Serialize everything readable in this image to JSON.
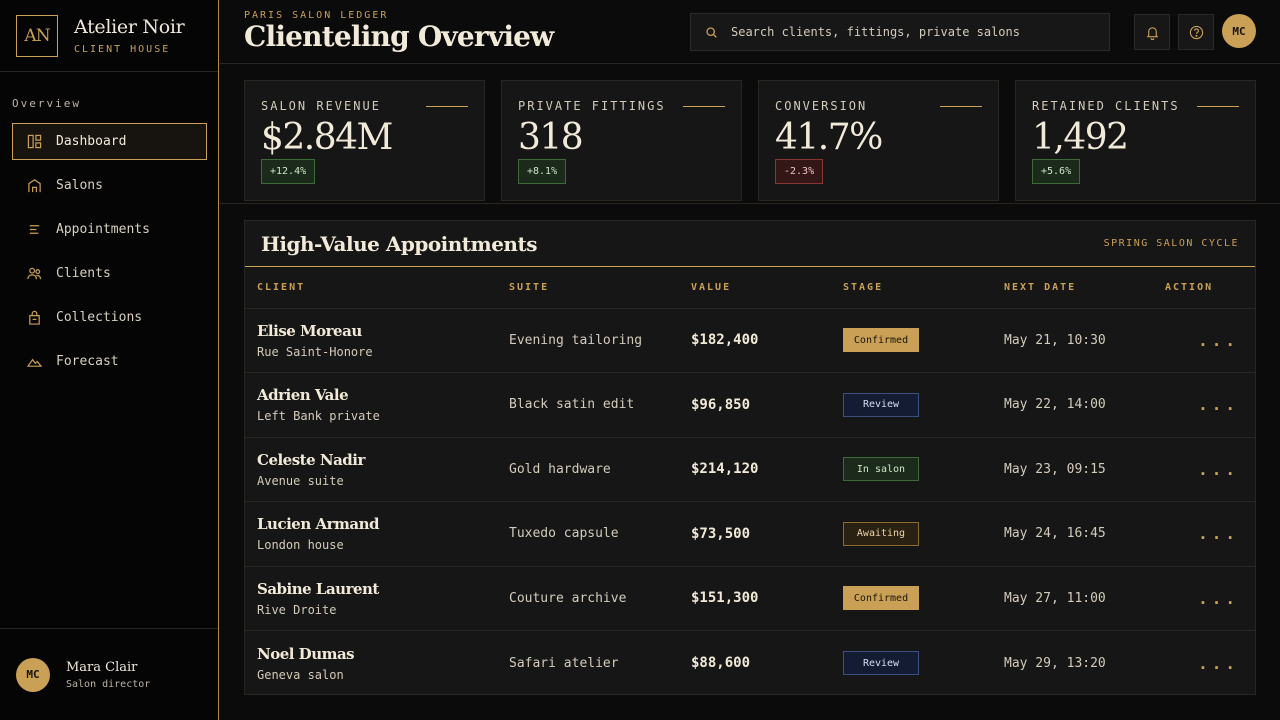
{
  "brand": {
    "mark": "AN",
    "name": "Atelier Noir",
    "sub": "CLIENT HOUSE"
  },
  "nav": {
    "heading": "Overview",
    "items": [
      {
        "label": "Dashboard",
        "icon": "dashboard-icon",
        "active": true
      },
      {
        "label": "Salons",
        "icon": "salon-icon"
      },
      {
        "label": "Appointments",
        "icon": "list-icon"
      },
      {
        "label": "Clients",
        "icon": "users-icon"
      },
      {
        "label": "Collections",
        "icon": "bag-icon"
      },
      {
        "label": "Forecast",
        "icon": "mountain-icon"
      }
    ]
  },
  "user": {
    "initials": "MC",
    "name": "Mara Clair",
    "role": "Salon director"
  },
  "header": {
    "eyebrow": "PARIS SALON LEDGER",
    "title": "Clienteling Overview",
    "search_placeholder": "Search clients, fittings, private salons",
    "avatar": "MC"
  },
  "kpis": [
    {
      "label": "SALON REVENUE",
      "value": "$2.84M",
      "delta": "+12.4%",
      "trend": "up"
    },
    {
      "label": "PRIVATE FITTINGS",
      "value": "318",
      "delta": "+8.1%",
      "trend": "up"
    },
    {
      "label": "CONVERSION",
      "value": "41.7%",
      "delta": "-2.3%",
      "trend": "down"
    },
    {
      "label": "RETAINED CLIENTS",
      "value": "1,492",
      "delta": "+5.6%",
      "trend": "up"
    }
  ],
  "table": {
    "title": "High-Value Appointments",
    "tag": "SPRING SALON CYCLE",
    "columns": [
      "CLIENT",
      "SUITE",
      "VALUE",
      "STAGE",
      "NEXT DATE",
      "ACTION"
    ],
    "rows": [
      {
        "name": "Elise Moreau",
        "place": "Rue Saint-Honore",
        "suite": "Evening tailoring",
        "value": "$182,400",
        "stage": "Confirmed",
        "date": "May 21, 10:30"
      },
      {
        "name": "Adrien Vale",
        "place": "Left Bank private",
        "suite": "Black satin edit",
        "value": "$96,850",
        "stage": "Review",
        "date": "May 22, 14:00"
      },
      {
        "name": "Celeste Nadir",
        "place": "Avenue suite",
        "suite": "Gold hardware",
        "value": "$214,120",
        "stage": "In salon",
        "date": "May 23, 09:15"
      },
      {
        "name": "Lucien Armand",
        "place": "London house",
        "suite": "Tuxedo capsule",
        "value": "$73,500",
        "stage": "Awaiting",
        "date": "May 24, 16:45"
      },
      {
        "name": "Sabine Laurent",
        "place": "Rive Droite",
        "suite": "Couture archive",
        "value": "$151,300",
        "stage": "Confirmed",
        "date": "May 27, 11:00"
      },
      {
        "name": "Noel Dumas",
        "place": "Geneva salon",
        "suite": "Safari atelier",
        "value": "$88,600",
        "stage": "Review",
        "date": "May 29, 13:20"
      }
    ],
    "action_label": "..."
  },
  "colors": {
    "accent": "#c9a055",
    "background": "#0b0b0b",
    "panel": "#161616"
  }
}
